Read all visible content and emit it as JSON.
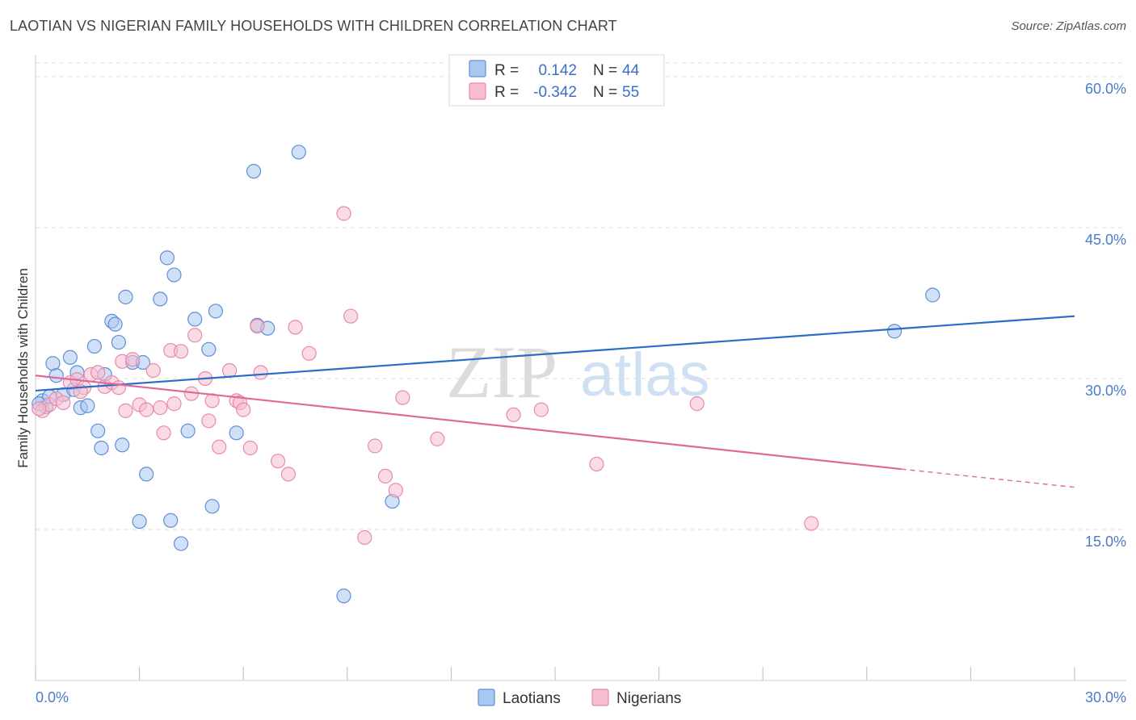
{
  "title": "LAOTIAN VS NIGERIAN FAMILY HOUSEHOLDS WITH CHILDREN CORRELATION CHART",
  "source": "Source: ZipAtlas.com",
  "watermark": {
    "zip": "ZIP",
    "atlas": "atlas"
  },
  "legend": {
    "r_label": "R =",
    "n_label": "N =",
    "entries": [
      {
        "name": "Laotians",
        "r": "0.142",
        "n": "44"
      },
      {
        "name": "Nigerians",
        "r": "-0.342",
        "n": "55"
      }
    ]
  },
  "colors": {
    "laotian_fill": "#a9c7ef",
    "laotian_stroke": "#5f8fd6",
    "laotian_line": "#2a6cc8",
    "nigerian_fill": "#f6bdd0",
    "nigerian_stroke": "#e88aaa",
    "nigerian_line": "#e0679a",
    "grid": "#dddddd",
    "axis_label": "#4a7cc8"
  },
  "chart_data": {
    "type": "scatter",
    "title": "LAOTIAN VS NIGERIAN FAMILY HOUSEHOLDS WITH CHILDREN CORRELATION CHART",
    "xlabel": "",
    "ylabel": "Family Households with Children",
    "xlim": [
      0,
      30
    ],
    "ylim": [
      0,
      62
    ],
    "x_tick_labels": [
      "0.0%",
      "30.0%"
    ],
    "y_ticks": [
      15,
      30,
      45,
      60
    ],
    "y_tick_labels": [
      "15.0%",
      "30.0%",
      "45.0%",
      "60.0%"
    ],
    "grid": true,
    "legend_position": "top-center",
    "series": [
      {
        "name": "Laotians",
        "trend": {
          "x0": 0,
          "y0": 28.8,
          "x1": 30,
          "y1": 36.2
        },
        "points": [
          [
            0.2,
            27.8
          ],
          [
            0.3,
            27.2
          ],
          [
            0.4,
            28.2
          ],
          [
            0.5,
            31.5
          ],
          [
            0.6,
            30.3
          ],
          [
            0.8,
            28.4
          ],
          [
            1.0,
            32.1
          ],
          [
            1.1,
            28.9
          ],
          [
            1.2,
            30.6
          ],
          [
            1.3,
            27.1
          ],
          [
            1.5,
            27.3
          ],
          [
            1.7,
            33.2
          ],
          [
            1.8,
            24.8
          ],
          [
            1.9,
            23.1
          ],
          [
            2.0,
            30.4
          ],
          [
            2.2,
            35.7
          ],
          [
            2.3,
            35.4
          ],
          [
            2.4,
            33.6
          ],
          [
            2.5,
            23.4
          ],
          [
            2.6,
            38.1
          ],
          [
            2.8,
            31.6
          ],
          [
            3.0,
            15.8
          ],
          [
            3.1,
            31.6
          ],
          [
            3.2,
            20.5
          ],
          [
            3.6,
            37.9
          ],
          [
            3.8,
            42.0
          ],
          [
            3.9,
            15.9
          ],
          [
            4.0,
            40.3
          ],
          [
            4.2,
            13.6
          ],
          [
            4.4,
            24.8
          ],
          [
            4.6,
            35.9
          ],
          [
            5.0,
            32.9
          ],
          [
            5.1,
            17.3
          ],
          [
            5.2,
            36.7
          ],
          [
            5.8,
            24.6
          ],
          [
            6.4,
            35.3
          ],
          [
            6.7,
            35.0
          ],
          [
            7.6,
            52.5
          ],
          [
            6.3,
            50.6
          ],
          [
            8.9,
            8.4
          ],
          [
            10.3,
            17.8
          ],
          [
            24.8,
            34.7
          ],
          [
            25.9,
            38.3
          ],
          [
            0.1,
            27.5
          ]
        ]
      },
      {
        "name": "Nigerians",
        "trend": {
          "x0": 0,
          "y0": 30.3,
          "x1": 25.0,
          "y1": 21.0,
          "dash_to_x": 30,
          "dash_to_y": 19.2
        },
        "points": [
          [
            0.2,
            26.8
          ],
          [
            0.4,
            27.4
          ],
          [
            0.6,
            28.0
          ],
          [
            0.8,
            27.6
          ],
          [
            1.0,
            29.6
          ],
          [
            1.2,
            29.9
          ],
          [
            1.4,
            29.1
          ],
          [
            1.6,
            30.4
          ],
          [
            1.8,
            30.6
          ],
          [
            2.0,
            29.2
          ],
          [
            2.2,
            29.6
          ],
          [
            2.4,
            29.1
          ],
          [
            2.5,
            31.7
          ],
          [
            2.6,
            26.8
          ],
          [
            2.8,
            31.9
          ],
          [
            3.0,
            27.4
          ],
          [
            3.2,
            26.9
          ],
          [
            3.4,
            30.8
          ],
          [
            3.6,
            27.1
          ],
          [
            3.7,
            24.6
          ],
          [
            3.9,
            32.8
          ],
          [
            4.0,
            27.5
          ],
          [
            4.2,
            32.7
          ],
          [
            4.5,
            28.5
          ],
          [
            4.6,
            34.3
          ],
          [
            4.9,
            30.0
          ],
          [
            5.0,
            25.8
          ],
          [
            5.1,
            27.8
          ],
          [
            5.3,
            23.2
          ],
          [
            5.6,
            30.8
          ],
          [
            5.8,
            27.8
          ],
          [
            5.9,
            27.6
          ],
          [
            6.0,
            26.9
          ],
          [
            6.2,
            23.1
          ],
          [
            6.4,
            35.2
          ],
          [
            6.5,
            30.6
          ],
          [
            7.0,
            21.8
          ],
          [
            7.3,
            20.5
          ],
          [
            7.5,
            35.1
          ],
          [
            7.9,
            32.5
          ],
          [
            8.9,
            46.4
          ],
          [
            9.1,
            36.2
          ],
          [
            9.5,
            14.2
          ],
          [
            9.8,
            23.3
          ],
          [
            10.1,
            20.3
          ],
          [
            10.4,
            18.9
          ],
          [
            10.6,
            28.1
          ],
          [
            11.6,
            24.0
          ],
          [
            13.8,
            26.4
          ],
          [
            14.6,
            26.9
          ],
          [
            16.2,
            21.5
          ],
          [
            19.1,
            27.5
          ],
          [
            22.4,
            15.6
          ],
          [
            0.1,
            27.0
          ],
          [
            1.3,
            28.7
          ]
        ]
      }
    ]
  },
  "bottom_legend": [
    "Laotians",
    "Nigerians"
  ]
}
